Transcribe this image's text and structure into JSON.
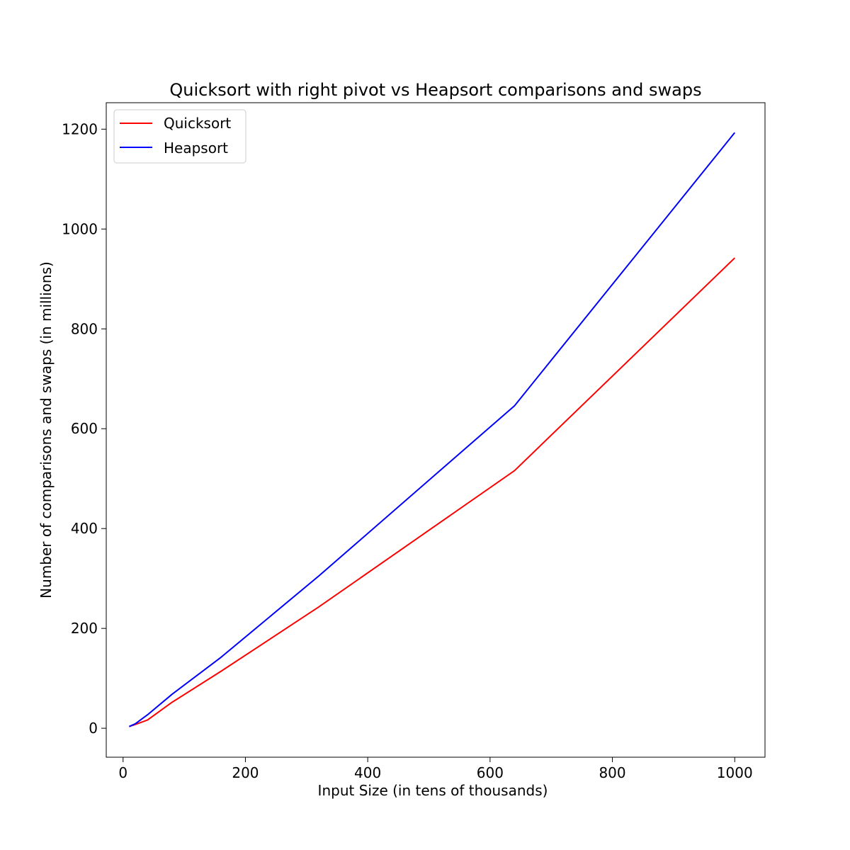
{
  "chart_data": {
    "type": "line",
    "title": "Quicksort with right pivot vs Heapsort comparisons and swaps",
    "xlabel": "Input Size (in tens of thousands)",
    "ylabel": "Number of comparisons and swaps (in millions)",
    "xlim": [
      -27.5,
      1049.5
    ],
    "ylim": [
      -58,
      1253
    ],
    "xticks": [
      0,
      200,
      400,
      600,
      800,
      1000
    ],
    "yticks": [
      0,
      200,
      400,
      600,
      800,
      1000,
      1200
    ],
    "grid": false,
    "legend_position": "top-left",
    "series": [
      {
        "name": "Quicksort",
        "color": "#ff0000",
        "x": [
          10,
          20,
          40,
          80,
          160,
          320,
          640,
          1000
        ],
        "y": [
          3.5,
          7.5,
          16.5,
          52,
          114,
          243,
          516,
          942
        ]
      },
      {
        "name": "Heapsort",
        "color": "#0000ff",
        "x": [
          10,
          20,
          40,
          80,
          160,
          320,
          640,
          1000
        ],
        "y": [
          3.5,
          9,
          27,
          68,
          142,
          305,
          646,
          1193
        ]
      }
    ]
  }
}
